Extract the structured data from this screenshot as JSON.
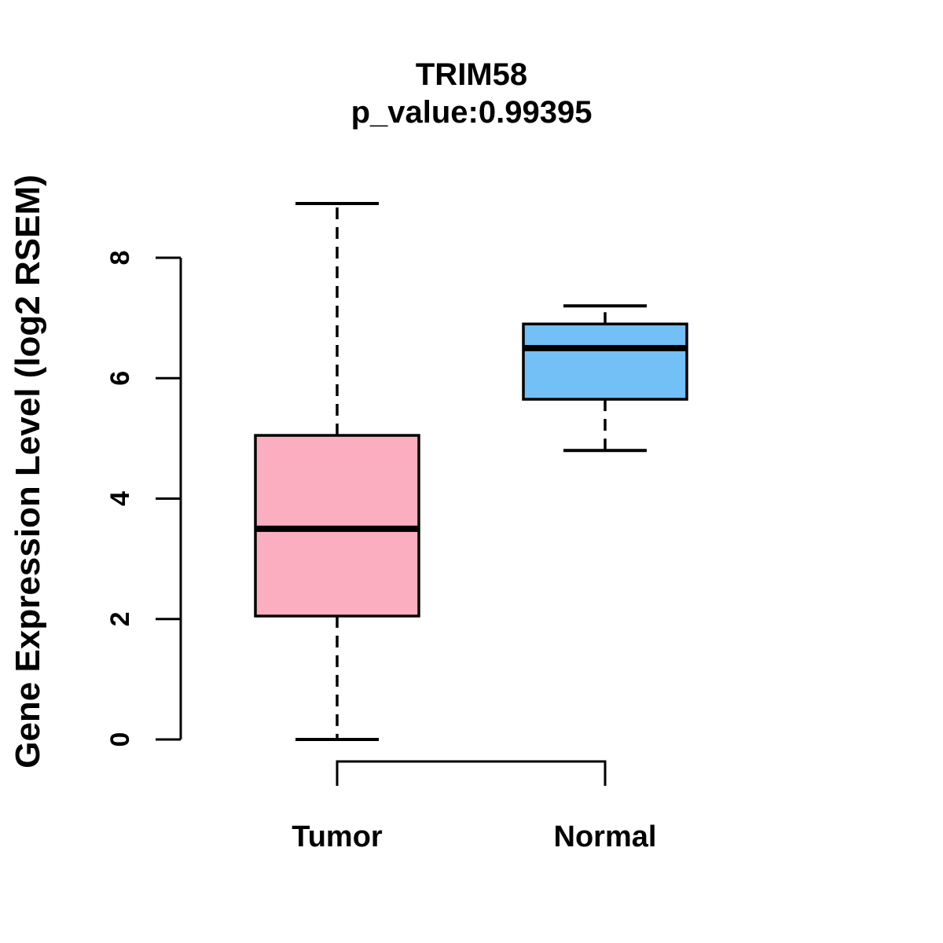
{
  "chart_data": {
    "type": "boxplot",
    "title": "TRIM58",
    "subtitle": "p_value:0.99395",
    "ylabel": "Gene Expression Level (log2 RSEM)",
    "xlabel": "",
    "categories": [
      "Tumor",
      "Normal"
    ],
    "series": [
      {
        "name": "Tumor",
        "min": 0.0,
        "q1": 2.05,
        "median": 3.5,
        "q3": 5.05,
        "max": 8.9,
        "color": "#FCAEC1"
      },
      {
        "name": "Normal",
        "min": 4.8,
        "q1": 5.65,
        "median": 6.5,
        "q3": 6.9,
        "max": 7.2,
        "color": "#73C0F6"
      }
    ],
    "y_ticks": [
      0,
      2,
      4,
      6,
      8
    ],
    "ylim": [
      0,
      9.2
    ],
    "grid": false,
    "legend": "none"
  },
  "colors": {
    "background": "#FFFFFF",
    "stroke": "#000000",
    "text": "#000000",
    "tumor_fill": "#FCAEC1",
    "normal_fill": "#73C0F6"
  }
}
